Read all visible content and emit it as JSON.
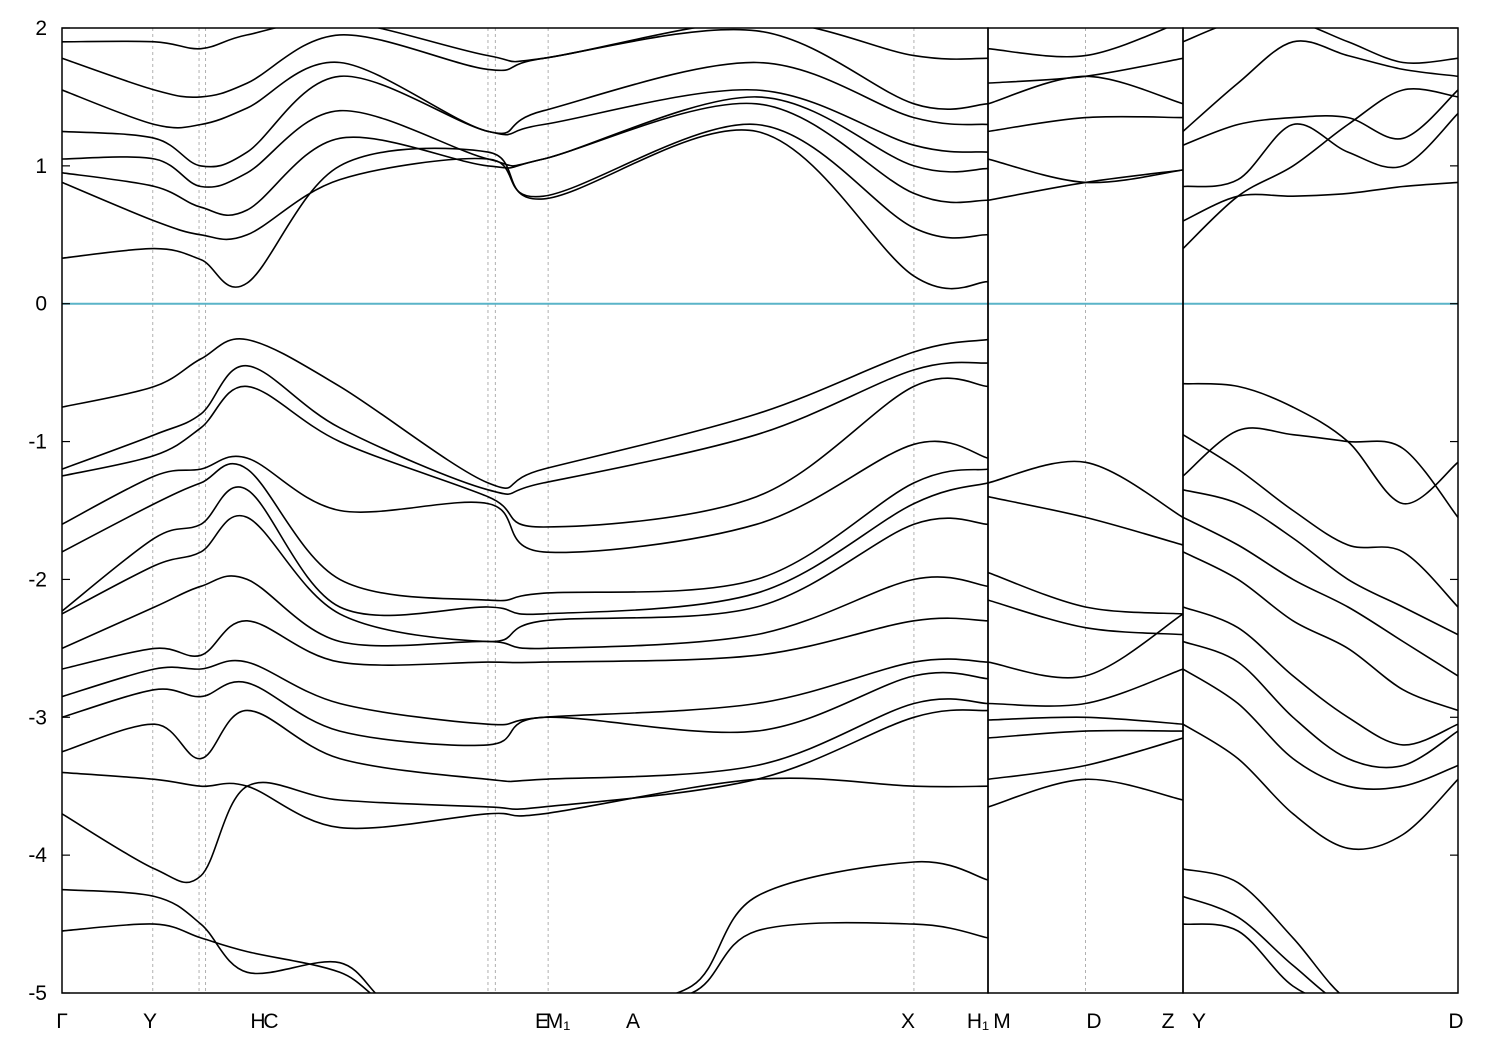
{
  "chart_data": {
    "type": "line",
    "title": "",
    "xlabel": "",
    "ylabel": "",
    "ylim": [
      -5,
      2
    ],
    "y_ticks": [
      2,
      1,
      0,
      -1,
      -2,
      -3,
      -4,
      -5
    ],
    "y_tick_labels": [
      "2",
      "1",
      "0",
      "-1",
      "-2",
      "-3",
      "-4",
      "-5"
    ],
    "fermi_level": 0,
    "colors": {
      "bands": "#000000",
      "fermi_line": "#5ab4c8",
      "kpath_lines": "#b0b0b0"
    },
    "grid": false,
    "legend": "none",
    "segments": [
      {
        "name": "segment-1",
        "x_range": [
          0,
          1
        ],
        "breaks": [
          0,
          0.098,
          0.148,
          0.155,
          0.46,
          0.468,
          0.525,
          0.92,
          1.0
        ]
      },
      {
        "name": "segment-2",
        "x_range": [
          0,
          1
        ],
        "breaks": [
          0,
          0.5,
          1.0
        ]
      },
      {
        "name": "segment-3",
        "x_range": [
          0,
          1
        ],
        "breaks": [
          0,
          1.0
        ]
      }
    ],
    "x_tick_labels": [
      "Γ",
      "Y",
      "H",
      "C",
      "E",
      "M₁",
      "A",
      "X",
      "H₁",
      "M",
      "D",
      "Z",
      "Y",
      "D"
    ],
    "bands": [
      {
        "segment": 0,
        "x": [
          0,
          0.1,
          0.15,
          0.2,
          0.3,
          0.46,
          0.52,
          0.75,
          0.92,
          1.0
        ],
        "y": [
          0.33,
          0.4,
          0.32,
          0.15,
          1.0,
          1.1,
          0.76,
          1.25,
          0.2,
          0.16
        ]
      },
      {
        "segment": 0,
        "x": [
          0,
          0.1,
          0.15,
          0.2,
          0.3,
          0.46,
          0.52,
          0.75,
          0.92,
          1.0
        ],
        "y": [
          0.88,
          0.6,
          0.5,
          0.5,
          0.9,
          1.05,
          0.78,
          1.3,
          0.55,
          0.5
        ]
      },
      {
        "segment": 0,
        "x": [
          0,
          0.1,
          0.15,
          0.2,
          0.3,
          0.46,
          0.52,
          0.75,
          0.92,
          1.0
        ],
        "y": [
          0.95,
          0.85,
          0.7,
          0.68,
          1.2,
          1.0,
          1.05,
          1.45,
          0.8,
          0.75
        ]
      },
      {
        "segment": 0,
        "x": [
          0,
          0.1,
          0.15,
          0.2,
          0.3,
          0.46,
          0.52,
          0.75,
          0.92,
          1.0
        ],
        "y": [
          1.05,
          1.05,
          0.85,
          0.95,
          1.4,
          1.05,
          1.05,
          1.5,
          1.0,
          0.98
        ]
      },
      {
        "segment": 0,
        "x": [
          0,
          0.1,
          0.15,
          0.2,
          0.3,
          0.46,
          0.52,
          0.75,
          0.92,
          1.0
        ],
        "y": [
          1.25,
          1.2,
          1.0,
          1.1,
          1.65,
          1.25,
          1.3,
          1.55,
          1.15,
          1.1
        ]
      },
      {
        "segment": 0,
        "x": [
          0,
          0.1,
          0.15,
          0.2,
          0.3,
          0.46,
          0.52,
          0.75,
          0.92,
          1.0
        ],
        "y": [
          1.55,
          1.3,
          1.3,
          1.42,
          1.75,
          1.25,
          1.4,
          1.75,
          1.35,
          1.3
        ]
      },
      {
        "segment": 0,
        "x": [
          0,
          0.1,
          0.15,
          0.2,
          0.3,
          0.46,
          0.52,
          0.75,
          0.92,
          1.0
        ],
        "y": [
          1.78,
          1.55,
          1.5,
          1.6,
          1.95,
          1.7,
          1.78,
          1.98,
          1.45,
          1.45
        ]
      },
      {
        "segment": 0,
        "x": [
          0,
          0.1,
          0.15,
          0.2,
          0.3,
          0.46,
          0.52,
          0.75,
          0.92,
          1.0
        ],
        "y": [
          1.9,
          1.9,
          1.85,
          1.95,
          2.05,
          1.8,
          1.78,
          2.05,
          1.8,
          1.78
        ]
      },
      {
        "segment": 0,
        "x": [
          0,
          0.1,
          0.15,
          0.2,
          0.3,
          0.46,
          0.52,
          0.75,
          0.92,
          1.0
        ],
        "y": [
          -0.75,
          -0.6,
          -0.4,
          -0.26,
          -0.6,
          -1.3,
          -1.2,
          -0.8,
          -0.35,
          -0.26
        ]
      },
      {
        "segment": 0,
        "x": [
          0,
          0.1,
          0.15,
          0.2,
          0.3,
          0.46,
          0.52,
          0.75,
          0.92,
          1.0
        ],
        "y": [
          -1.2,
          -0.95,
          -0.8,
          -0.45,
          -0.9,
          -1.35,
          -1.3,
          -0.95,
          -0.48,
          -0.43
        ]
      },
      {
        "segment": 0,
        "x": [
          0,
          0.1,
          0.15,
          0.2,
          0.3,
          0.46,
          0.52,
          0.75,
          0.92,
          1.0
        ],
        "y": [
          -1.25,
          -1.1,
          -0.9,
          -0.6,
          -1.0,
          -1.4,
          -1.62,
          -1.4,
          -0.6,
          -0.6
        ]
      },
      {
        "segment": 0,
        "x": [
          0,
          0.1,
          0.15,
          0.2,
          0.3,
          0.46,
          0.52,
          0.75,
          0.92,
          1.0
        ],
        "y": [
          -1.6,
          -1.25,
          -1.2,
          -1.12,
          -1.5,
          -1.45,
          -1.8,
          -1.6,
          -1.02,
          -1.12
        ]
      },
      {
        "segment": 0,
        "x": [
          0,
          0.1,
          0.15,
          0.2,
          0.3,
          0.46,
          0.52,
          0.75,
          0.92,
          1.0
        ],
        "y": [
          -1.8,
          -1.45,
          -1.3,
          -1.2,
          -2.0,
          -2.15,
          -2.1,
          -2.0,
          -1.3,
          -1.2
        ]
      },
      {
        "segment": 0,
        "x": [
          0,
          0.1,
          0.15,
          0.2,
          0.3,
          0.46,
          0.52,
          0.75,
          0.92,
          1.0
        ],
        "y": [
          -2.23,
          -1.7,
          -1.6,
          -1.35,
          -2.2,
          -2.2,
          -2.25,
          -2.1,
          -1.45,
          -1.3
        ]
      },
      {
        "segment": 0,
        "x": [
          0,
          0.1,
          0.15,
          0.2,
          0.3,
          0.46,
          0.52,
          0.75,
          0.92,
          1.0
        ],
        "y": [
          -2.25,
          -1.9,
          -1.8,
          -1.55,
          -2.25,
          -2.45,
          -2.3,
          -2.2,
          -1.6,
          -1.6
        ]
      },
      {
        "segment": 0,
        "x": [
          0,
          0.1,
          0.15,
          0.2,
          0.3,
          0.46,
          0.52,
          0.75,
          0.92,
          1.0
        ],
        "y": [
          -2.5,
          -2.2,
          -2.05,
          -2.0,
          -2.45,
          -2.45,
          -2.5,
          -2.4,
          -2.0,
          -2.05
        ]
      },
      {
        "segment": 0,
        "x": [
          0,
          0.1,
          0.15,
          0.2,
          0.3,
          0.46,
          0.52,
          0.75,
          0.92,
          1.0
        ],
        "y": [
          -2.65,
          -2.5,
          -2.55,
          -2.3,
          -2.6,
          -2.6,
          -2.6,
          -2.55,
          -2.3,
          -2.3
        ]
      },
      {
        "segment": 0,
        "x": [
          0,
          0.1,
          0.15,
          0.2,
          0.3,
          0.46,
          0.52,
          0.75,
          0.92,
          1.0
        ],
        "y": [
          -2.85,
          -2.65,
          -2.65,
          -2.6,
          -2.9,
          -3.05,
          -3.0,
          -2.9,
          -2.6,
          -2.6
        ]
      },
      {
        "segment": 0,
        "x": [
          0,
          0.1,
          0.15,
          0.2,
          0.3,
          0.46,
          0.52,
          0.75,
          0.92,
          1.0
        ],
        "y": [
          -3.0,
          -2.8,
          -2.85,
          -2.75,
          -3.1,
          -3.2,
          -3.0,
          -3.1,
          -2.7,
          -2.72
        ]
      },
      {
        "segment": 0,
        "x": [
          0,
          0.1,
          0.15,
          0.2,
          0.3,
          0.46,
          0.52,
          0.75,
          0.92,
          1.0
        ],
        "y": [
          -3.25,
          -3.05,
          -3.3,
          -2.95,
          -3.3,
          -3.45,
          -3.45,
          -3.35,
          -2.9,
          -2.9
        ]
      },
      {
        "segment": 0,
        "x": [
          0,
          0.1,
          0.15,
          0.2,
          0.3,
          0.46,
          0.52,
          0.75,
          0.92,
          1.0
        ],
        "y": [
          -3.7,
          -4.1,
          -4.15,
          -3.5,
          -3.6,
          -3.65,
          -3.65,
          -3.45,
          -3.0,
          -2.95
        ]
      },
      {
        "segment": 0,
        "x": [
          0,
          0.1,
          0.15,
          0.2,
          0.3,
          0.46,
          0.52,
          0.75,
          0.92,
          1.0
        ],
        "y": [
          -3.4,
          -3.45,
          -3.5,
          -3.5,
          -3.8,
          -3.7,
          -3.7,
          -3.45,
          -3.5,
          -3.5
        ]
      },
      {
        "segment": 0,
        "x": [
          0,
          0.1,
          0.15,
          0.2,
          0.3,
          0.36,
          0.46,
          0.52,
          0.56,
          0.68,
          0.75,
          0.92,
          1.0
        ],
        "y": [
          -4.25,
          -4.3,
          -4.5,
          -4.85,
          -4.78,
          -5.1,
          -5.1,
          -5.1,
          -5.1,
          -4.95,
          -4.3,
          -4.05,
          -4.18
        ]
      },
      {
        "segment": 0,
        "x": [
          0,
          0.1,
          0.15,
          0.2,
          0.3,
          0.36,
          0.46,
          0.52,
          0.56,
          0.68,
          0.75,
          0.92,
          1.0
        ],
        "y": [
          -4.55,
          -4.5,
          -4.6,
          -4.7,
          -4.85,
          -5.1,
          -5.1,
          -5.1,
          -5.1,
          -5.0,
          -4.55,
          -4.5,
          -4.6
        ]
      },
      {
        "segment": 1,
        "x": [
          0,
          0.5,
          1.0
        ],
        "y": [
          0.75,
          0.88,
          0.97
        ]
      },
      {
        "segment": 1,
        "x": [
          0,
          0.5,
          1.0
        ],
        "y": [
          1.05,
          0.88,
          0.97
        ]
      },
      {
        "segment": 1,
        "x": [
          0,
          0.5,
          1.0
        ],
        "y": [
          1.25,
          1.35,
          1.35
        ]
      },
      {
        "segment": 1,
        "x": [
          0,
          0.5,
          1.0
        ],
        "y": [
          1.45,
          1.65,
          1.45
        ]
      },
      {
        "segment": 1,
        "x": [
          0,
          0.5,
          1.0
        ],
        "y": [
          1.6,
          1.65,
          1.78
        ]
      },
      {
        "segment": 1,
        "x": [
          0,
          0.5,
          1.0
        ],
        "y": [
          1.85,
          1.8,
          2.05
        ]
      },
      {
        "segment": 1,
        "x": [
          0,
          0.5,
          1.0
        ],
        "y": [
          -1.3,
          -1.15,
          -1.55
        ]
      },
      {
        "segment": 1,
        "x": [
          0,
          0.5,
          1.0
        ],
        "y": [
          -1.4,
          -1.55,
          -1.75
        ]
      },
      {
        "segment": 1,
        "x": [
          0,
          0.5,
          1.0
        ],
        "y": [
          -1.95,
          -2.2,
          -2.25
        ]
      },
      {
        "segment": 1,
        "x": [
          0,
          0.5,
          1.0
        ],
        "y": [
          -2.15,
          -2.35,
          -2.4
        ]
      },
      {
        "segment": 1,
        "x": [
          0,
          0.5,
          1.0
        ],
        "y": [
          -2.6,
          -2.7,
          -2.25
        ]
      },
      {
        "segment": 1,
        "x": [
          0,
          0.5,
          1.0
        ],
        "y": [
          -2.9,
          -2.9,
          -2.65
        ]
      },
      {
        "segment": 1,
        "x": [
          0,
          0.5,
          1.0
        ],
        "y": [
          -3.02,
          -3.0,
          -3.05
        ]
      },
      {
        "segment": 1,
        "x": [
          0,
          0.5,
          1.0
        ],
        "y": [
          -3.15,
          -3.1,
          -3.1
        ]
      },
      {
        "segment": 1,
        "x": [
          0,
          0.5,
          1.0
        ],
        "y": [
          -3.45,
          -3.35,
          -3.15
        ]
      },
      {
        "segment": 1,
        "x": [
          0,
          0.5,
          1.0
        ],
        "y": [
          -3.65,
          -3.45,
          -3.6
        ]
      },
      {
        "segment": 2,
        "x": [
          0,
          0.2,
          0.4,
          0.6,
          0.8,
          1.0
        ],
        "y": [
          0.4,
          0.78,
          1.0,
          1.3,
          1.55,
          1.5
        ]
      },
      {
        "segment": 2,
        "x": [
          0,
          0.2,
          0.4,
          0.6,
          0.8,
          1.0
        ],
        "y": [
          0.6,
          0.78,
          0.78,
          0.8,
          0.85,
          0.88
        ]
      },
      {
        "segment": 2,
        "x": [
          0,
          0.2,
          0.4,
          0.6,
          0.8,
          1.0
        ],
        "y": [
          0.85,
          0.9,
          1.3,
          1.1,
          1.0,
          1.38
        ]
      },
      {
        "segment": 2,
        "x": [
          0,
          0.2,
          0.4,
          0.6,
          0.8,
          1.0
        ],
        "y": [
          1.15,
          1.3,
          1.35,
          1.35,
          1.2,
          1.55
        ]
      },
      {
        "segment": 2,
        "x": [
          0,
          0.2,
          0.4,
          0.6,
          0.8,
          1.0
        ],
        "y": [
          1.25,
          1.6,
          1.9,
          1.8,
          1.7,
          1.65
        ]
      },
      {
        "segment": 2,
        "x": [
          0,
          0.2,
          0.4,
          0.6,
          0.8,
          1.0
        ],
        "y": [
          1.9,
          2.05,
          2.05,
          1.9,
          1.75,
          1.78
        ]
      },
      {
        "segment": 2,
        "x": [
          0,
          0.2,
          0.4,
          0.6,
          0.8,
          1.0
        ],
        "y": [
          -0.58,
          -0.6,
          -0.75,
          -1.0,
          -1.45,
          -1.15
        ]
      },
      {
        "segment": 2,
        "x": [
          0,
          0.2,
          0.4,
          0.6,
          0.8,
          1.0
        ],
        "y": [
          -1.25,
          -0.92,
          -0.95,
          -1.0,
          -1.05,
          -1.55
        ]
      },
      {
        "segment": 2,
        "x": [
          0,
          0.2,
          0.4,
          0.6,
          0.8,
          1.0
        ],
        "y": [
          -0.95,
          -1.2,
          -1.5,
          -1.75,
          -1.8,
          -2.2
        ]
      },
      {
        "segment": 2,
        "x": [
          0,
          0.2,
          0.4,
          0.6,
          0.8,
          1.0
        ],
        "y": [
          -1.35,
          -1.45,
          -1.7,
          -2.0,
          -2.2,
          -2.4
        ]
      },
      {
        "segment": 2,
        "x": [
          0,
          0.2,
          0.4,
          0.6,
          0.8,
          1.0
        ],
        "y": [
          -1.55,
          -1.75,
          -2.0,
          -2.2,
          -2.45,
          -2.7
        ]
      },
      {
        "segment": 2,
        "x": [
          0,
          0.2,
          0.4,
          0.6,
          0.8,
          1.0
        ],
        "y": [
          -1.8,
          -2.0,
          -2.3,
          -2.5,
          -2.8,
          -2.95
        ]
      },
      {
        "segment": 2,
        "x": [
          0,
          0.2,
          0.4,
          0.6,
          0.8,
          1.0
        ],
        "y": [
          -2.2,
          -2.35,
          -2.7,
          -3.0,
          -3.2,
          -3.05
        ]
      },
      {
        "segment": 2,
        "x": [
          0,
          0.2,
          0.4,
          0.6,
          0.8,
          1.0
        ],
        "y": [
          -2.45,
          -2.6,
          -3.0,
          -3.3,
          -3.35,
          -3.1
        ]
      },
      {
        "segment": 2,
        "x": [
          0,
          0.2,
          0.4,
          0.6,
          0.8,
          1.0
        ],
        "y": [
          -2.65,
          -2.9,
          -3.3,
          -3.5,
          -3.5,
          -3.35
        ]
      },
      {
        "segment": 2,
        "x": [
          0,
          0.2,
          0.4,
          0.6,
          0.8,
          1.0
        ],
        "y": [
          -3.05,
          -3.3,
          -3.7,
          -3.95,
          -3.85,
          -3.45
        ]
      },
      {
        "segment": 2,
        "x": [
          0,
          0.2,
          0.4,
          0.6,
          0.8,
          1.0
        ],
        "y": [
          -4.1,
          -4.2,
          -4.6,
          -5.05,
          -5.1,
          -5.1
        ]
      },
      {
        "segment": 2,
        "x": [
          0,
          0.2,
          0.4,
          0.6,
          0.8,
          1.0
        ],
        "y": [
          -4.3,
          -4.45,
          -4.8,
          -5.1,
          -5.1,
          -5.1
        ]
      },
      {
        "segment": 2,
        "x": [
          0,
          0.2,
          0.4,
          0.6,
          0.8,
          1.0
        ],
        "y": [
          -4.5,
          -4.55,
          -4.95,
          -5.1,
          -5.1,
          -5.1
        ]
      }
    ]
  }
}
